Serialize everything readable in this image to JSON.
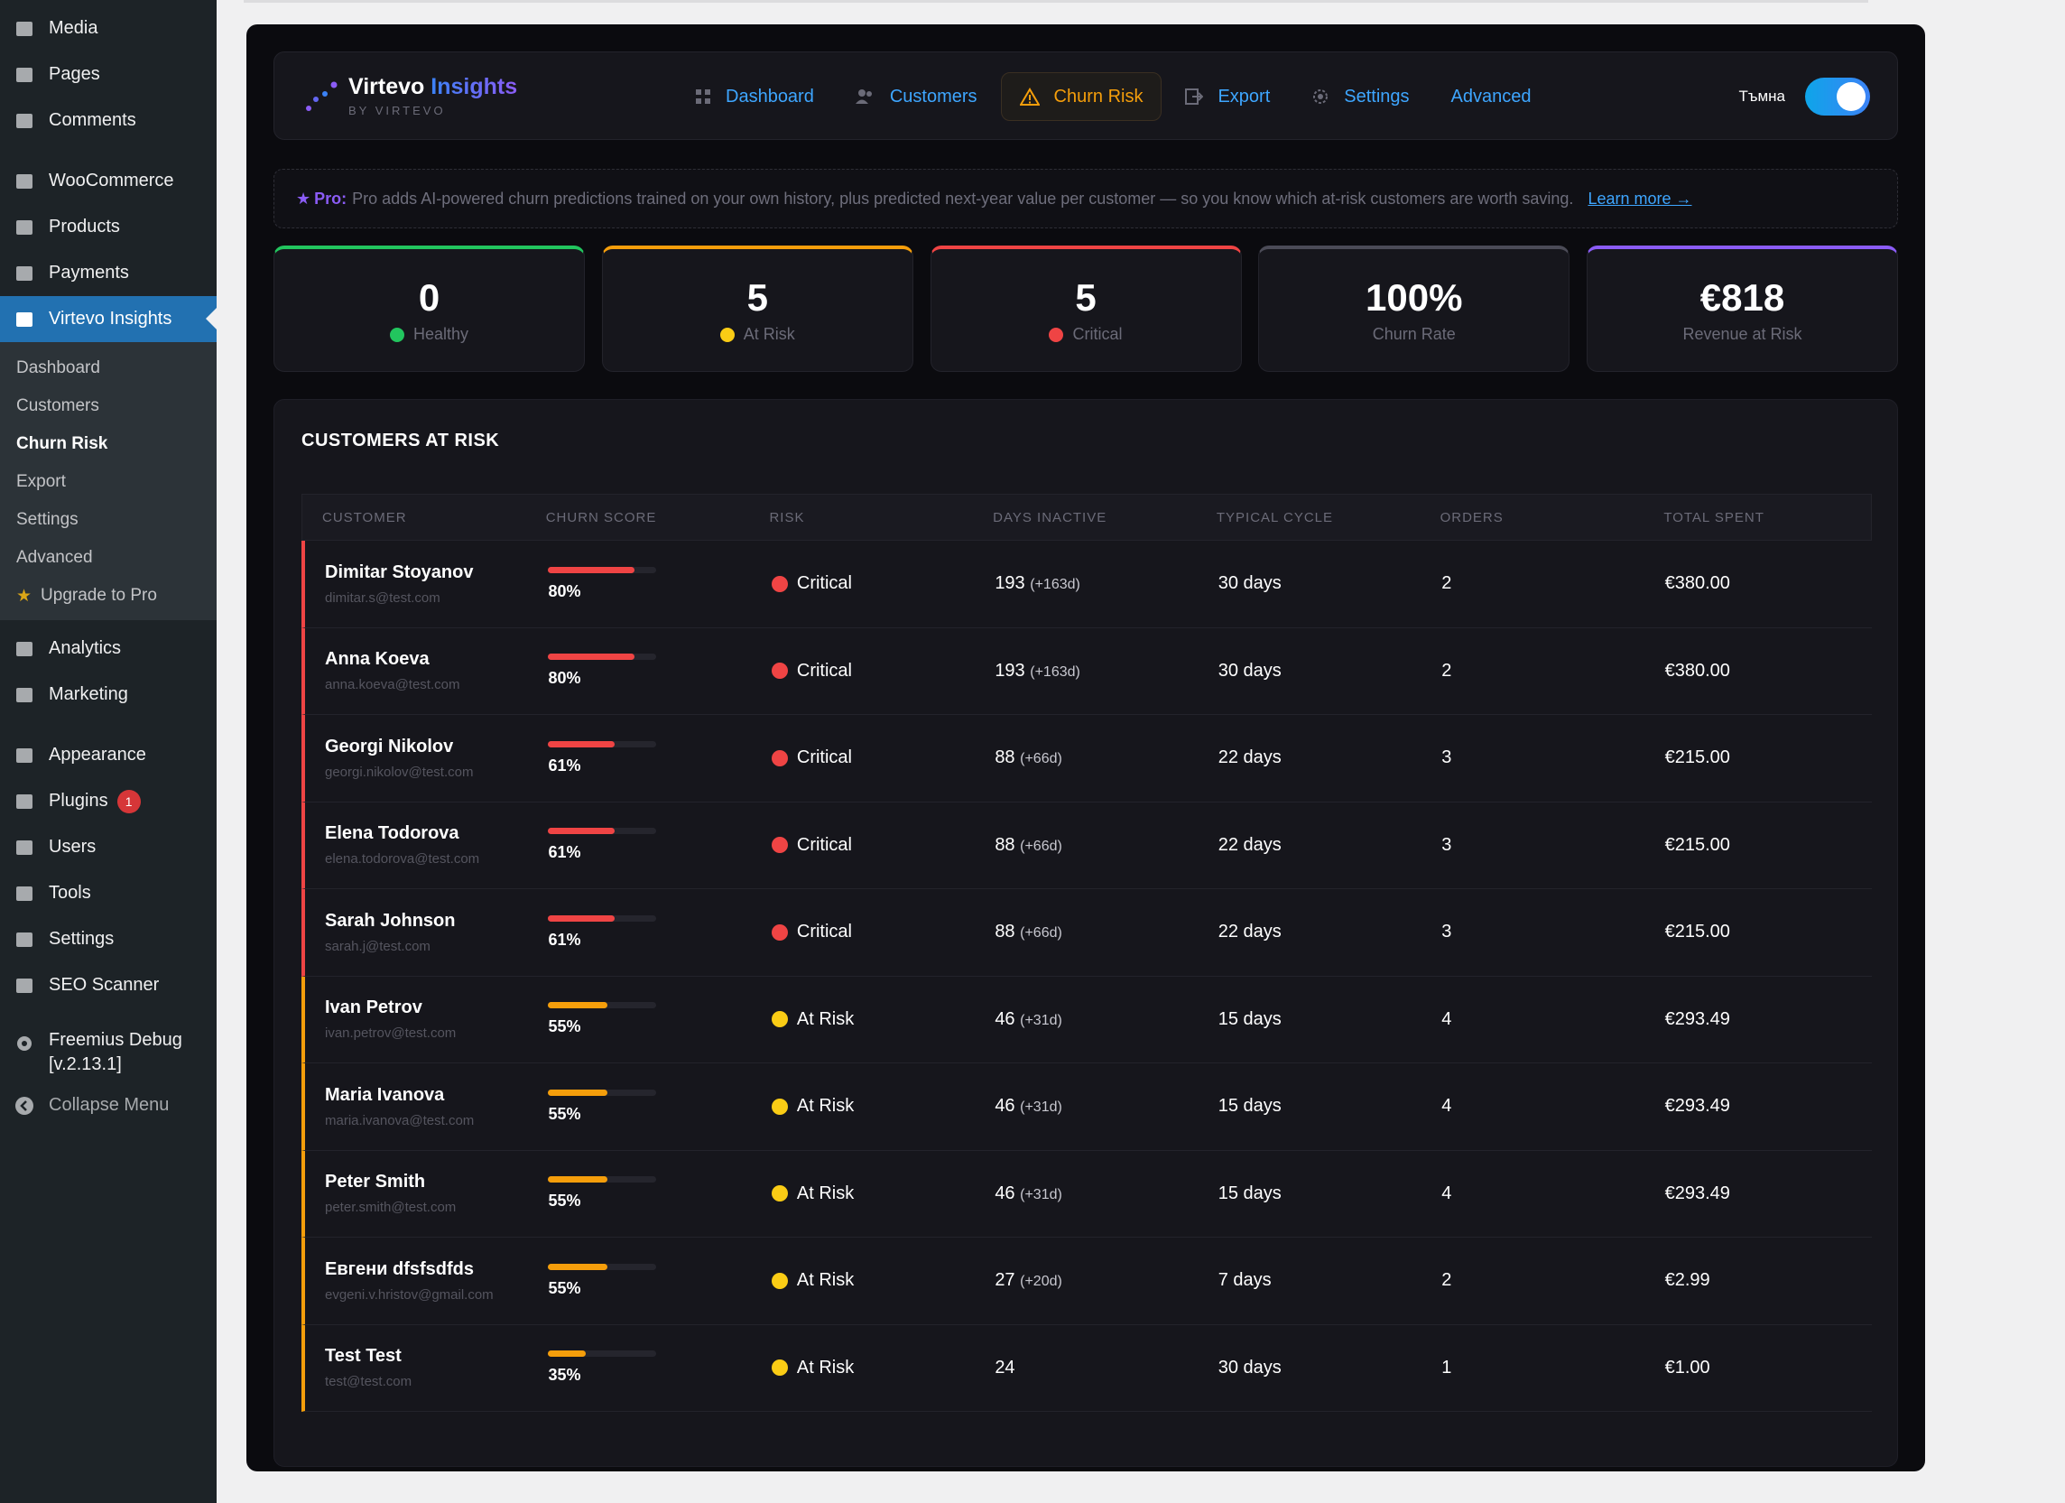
{
  "wp_menu": {
    "top": [
      {
        "label": "Media",
        "icon": "media-icon"
      },
      {
        "label": "Pages",
        "icon": "pages-icon"
      },
      {
        "label": "Comments",
        "icon": "comments-icon"
      }
    ],
    "mid": [
      {
        "label": "WooCommerce",
        "icon": "woocommerce-icon"
      },
      {
        "label": "Products",
        "icon": "products-icon"
      },
      {
        "label": "Payments",
        "icon": "payments-icon"
      },
      {
        "label": "Virtevo Insights",
        "icon": "insights-icon"
      }
    ],
    "submenu": [
      "Dashboard",
      "Customers",
      "Churn Risk",
      "Export",
      "Settings",
      "Advanced"
    ],
    "upgrade": "Upgrade to Pro",
    "after": [
      {
        "label": "Analytics",
        "icon": "analytics-icon"
      },
      {
        "label": "Marketing",
        "icon": "marketing-icon"
      }
    ],
    "tools": [
      {
        "label": "Appearance",
        "icon": "appearance-icon"
      },
      {
        "label": "Plugins",
        "icon": "plugins-icon",
        "badge": "1"
      },
      {
        "label": "Users",
        "icon": "users-icon"
      },
      {
        "label": "Tools",
        "icon": "tools-icon"
      },
      {
        "label": "Settings",
        "icon": "settings-icon"
      },
      {
        "label": "SEO Scanner",
        "icon": "seo-icon"
      }
    ],
    "freemius": "Freemius Debug",
    "freemius_ver": "[v.2.13.1]",
    "collapse": "Collapse Menu"
  },
  "brand": {
    "name_a": "Virtevo",
    "name_b": "Insights",
    "sub": "BY VIRTEVO"
  },
  "tabs": [
    "Dashboard",
    "Customers",
    "Churn Risk",
    "Export",
    "Settings",
    "Advanced"
  ],
  "dark_label": "Тъмна",
  "pro": {
    "label": "Pro:",
    "text": "Pro adds AI-powered churn predictions trained on your own history, plus predicted next-year value per customer — so you know which at-risk customers are worth saving.",
    "link": "Learn more →"
  },
  "stats": [
    {
      "value": "0",
      "label": "Healthy",
      "color": "#22c55e",
      "dot": "#22c55e"
    },
    {
      "value": "5",
      "label": "At Risk",
      "color": "#f59e0b",
      "dot": "#facc15"
    },
    {
      "value": "5",
      "label": "Critical",
      "color": "#ef4444",
      "dot": "#ef4444"
    },
    {
      "value": "100%",
      "label": "Churn Rate",
      "color": "#4b4b57",
      "dot": ""
    },
    {
      "value": "€818",
      "label": "Revenue at Risk",
      "color": "#8b5cf6",
      "dot": ""
    }
  ],
  "table": {
    "title": "CUSTOMERS AT RISK",
    "headers": [
      "CUSTOMER",
      "CHURN SCORE",
      "RISK",
      "DAYS INACTIVE",
      "TYPICAL CYCLE",
      "ORDERS",
      "TOTAL SPENT"
    ],
    "rows": [
      {
        "name": "Dimitar Stoyanov",
        "email": "dimitar.s@test.com",
        "score": "80%",
        "score_val": 0.8,
        "risk": "Critical",
        "days": "193",
        "over": "(+163d)",
        "cycle": "30 days",
        "orders": "2",
        "spent": "€380.00"
      },
      {
        "name": "Anna Koeva",
        "email": "anna.koeva@test.com",
        "score": "80%",
        "score_val": 0.8,
        "risk": "Critical",
        "days": "193",
        "over": "(+163d)",
        "cycle": "30 days",
        "orders": "2",
        "spent": "€380.00"
      },
      {
        "name": "Georgi Nikolov",
        "email": "georgi.nikolov@test.com",
        "score": "61%",
        "score_val": 0.61,
        "risk": "Critical",
        "days": "88",
        "over": "(+66d)",
        "cycle": "22 days",
        "orders": "3",
        "spent": "€215.00"
      },
      {
        "name": "Elena Todorova",
        "email": "elena.todorova@test.com",
        "score": "61%",
        "score_val": 0.61,
        "risk": "Critical",
        "days": "88",
        "over": "(+66d)",
        "cycle": "22 days",
        "orders": "3",
        "spent": "€215.00"
      },
      {
        "name": "Sarah Johnson",
        "email": "sarah.j@test.com",
        "score": "61%",
        "score_val": 0.61,
        "risk": "Critical",
        "days": "88",
        "over": "(+66d)",
        "cycle": "22 days",
        "orders": "3",
        "spent": "€215.00"
      },
      {
        "name": "Ivan Petrov",
        "email": "ivan.petrov@test.com",
        "score": "55%",
        "score_val": 0.55,
        "risk": "At Risk",
        "days": "46",
        "over": "(+31d)",
        "cycle": "15 days",
        "orders": "4",
        "spent": "€293.49"
      },
      {
        "name": "Maria Ivanova",
        "email": "maria.ivanova@test.com",
        "score": "55%",
        "score_val": 0.55,
        "risk": "At Risk",
        "days": "46",
        "over": "(+31d)",
        "cycle": "15 days",
        "orders": "4",
        "spent": "€293.49"
      },
      {
        "name": "Peter Smith",
        "email": "peter.smith@test.com",
        "score": "55%",
        "score_val": 0.55,
        "risk": "At Risk",
        "days": "46",
        "over": "(+31d)",
        "cycle": "15 days",
        "orders": "4",
        "spent": "€293.49"
      },
      {
        "name": "Евгени dfsfsdfds",
        "email": "evgeni.v.hristov@gmail.com",
        "score": "55%",
        "score_val": 0.55,
        "risk": "At Risk",
        "days": "27",
        "over": "(+20d)",
        "cycle": "7 days",
        "orders": "2",
        "spent": "€2.99"
      },
      {
        "name": "Test Test",
        "email": "test@test.com",
        "score": "35%",
        "score_val": 0.35,
        "risk": "At Risk",
        "days": "24",
        "over": "",
        "cycle": "30 days",
        "orders": "1",
        "spent": "€1.00"
      }
    ]
  },
  "colors": {
    "critical": "#ef4444",
    "atrisk": "#f59e0b",
    "atrisk_dot": "#facc15"
  }
}
